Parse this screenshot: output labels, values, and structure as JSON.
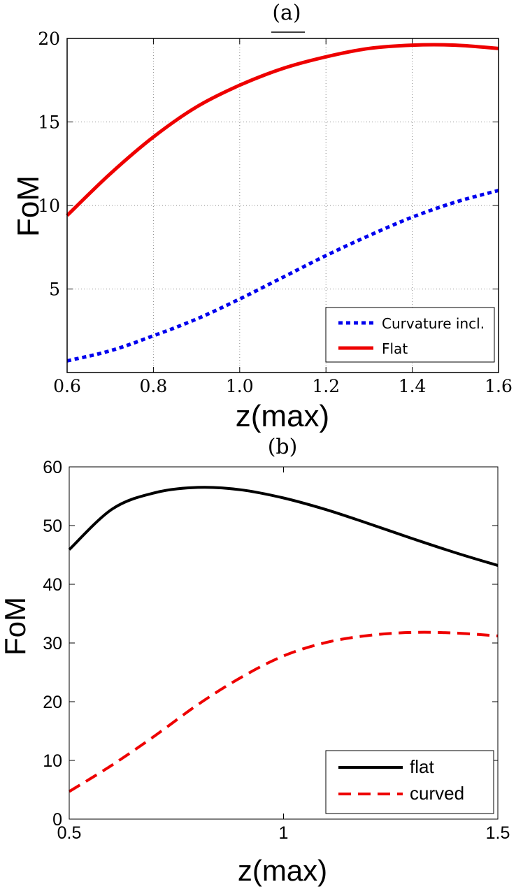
{
  "chart_data": [
    {
      "panel_label": "(a)",
      "type": "line",
      "xlabel": "z(max)",
      "ylabel": "FoM",
      "xlim": [
        0.6,
        1.6
      ],
      "ylim": [
        0,
        20
      ],
      "xticks": [
        "0.6",
        "0.8",
        "1.0",
        "1.2",
        "1.4",
        "1.6"
      ],
      "yticks": [
        "5",
        "10",
        "15",
        "20"
      ],
      "grid": true,
      "legend_position": "bottom-right",
      "series": [
        {
          "name": "Curvature incl.",
          "style": "dotted",
          "color": "#0000ee",
          "x": [
            0.6,
            0.7,
            0.8,
            0.9,
            1.0,
            1.1,
            1.2,
            1.3,
            1.4,
            1.5,
            1.6
          ],
          "y": [
            0.7,
            1.3,
            2.2,
            3.2,
            4.4,
            5.7,
            7.0,
            8.2,
            9.3,
            10.2,
            10.9
          ]
        },
        {
          "name": "Flat",
          "style": "solid",
          "color": "#ee0000",
          "x": [
            0.6,
            0.7,
            0.8,
            0.9,
            1.0,
            1.1,
            1.2,
            1.3,
            1.4,
            1.5,
            1.6
          ],
          "y": [
            9.4,
            11.9,
            14.1,
            15.9,
            17.2,
            18.2,
            18.9,
            19.4,
            19.6,
            19.6,
            19.4
          ]
        }
      ]
    },
    {
      "panel_label": "(b)",
      "type": "line",
      "xlabel": "z(max)",
      "ylabel": "FoM",
      "xlim": [
        0.5,
        1.5
      ],
      "ylim": [
        0,
        60
      ],
      "xticks": [
        "0.5",
        "1",
        "1.5"
      ],
      "yticks": [
        "0",
        "10",
        "20",
        "30",
        "40",
        "50",
        "60"
      ],
      "grid": false,
      "legend_position": "bottom-right",
      "series": [
        {
          "name": "flat",
          "style": "solid",
          "color": "#000000",
          "x": [
            0.5,
            0.6,
            0.7,
            0.8,
            0.9,
            1.0,
            1.1,
            1.2,
            1.3,
            1.4,
            1.5
          ],
          "y": [
            45.9,
            52.8,
            55.6,
            56.5,
            56.1,
            54.7,
            52.7,
            50.3,
            47.8,
            45.4,
            43.2
          ]
        },
        {
          "name": "curved",
          "style": "dashed",
          "color": "#ee0000",
          "x": [
            0.5,
            0.6,
            0.7,
            0.8,
            0.9,
            1.0,
            1.1,
            1.2,
            1.3,
            1.4,
            1.5
          ],
          "y": [
            4.7,
            9.2,
            14.2,
            19.5,
            24.1,
            27.8,
            30.1,
            31.3,
            31.8,
            31.7,
            31.2
          ]
        }
      ]
    }
  ]
}
